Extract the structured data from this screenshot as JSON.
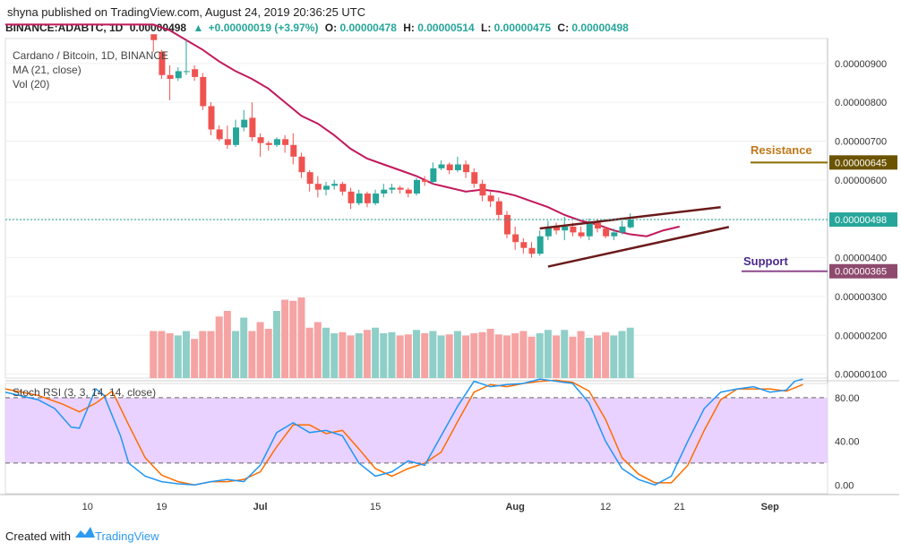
{
  "header": {
    "line1": "shyna published on TradingView.com, August 24, 2019 20:36:25 UTC",
    "symbol": "BINANCE:ADABTC, 1D",
    "last": "0.00000498",
    "change": "+0.00000019 (+3.97%)",
    "o_label": "O:",
    "o": "0.00000478",
    "h_label": "H:",
    "h": "0.00000514",
    "l_label": "L:",
    "l": "0.00000475",
    "c_label": "C:",
    "c": "0.00000498"
  },
  "legend": {
    "title": "Cardano / Bitcoin, 1D, BINANCE",
    "ma": "MA (21, close)",
    "vol": "Vol (20)"
  },
  "annotations": {
    "resistance": "Resistance",
    "support": "Support"
  },
  "footer": {
    "created_with": "Created with",
    "brand": "TradingView"
  },
  "colors": {
    "up": "#26a69a",
    "down": "#ef5350",
    "ma": "#c2185b",
    "vol_up": "#8fcfc8",
    "vol_down": "#f5a3a3",
    "trend": "#6b1a1a",
    "resistance": "#8a6d00",
    "support": "#8e4a8e",
    "rsi_k": "#2196f3",
    "rsi_d": "#ff6d00",
    "rsi_band": "#e4c7ff"
  },
  "chart_data": [
    {
      "type": "candlestick",
      "title": "Cardano / Bitcoin, 1D, BINANCE",
      "ylim": [
        9e-07,
        9.64e-06
      ],
      "y_ticks": [
        "0.00000100",
        "0.00000200",
        "0.00000300",
        "0.00000400",
        "0.00000500",
        "0.00000600",
        "0.00000700",
        "0.00000800",
        "0.00000900"
      ],
      "x_ticks": [
        {
          "label": "10",
          "day": 10
        },
        {
          "label": "19",
          "day": 19
        },
        {
          "label": "Jul",
          "day": 31
        },
        {
          "label": "15",
          "day": 45
        },
        {
          "label": "Aug",
          "day": 62
        },
        {
          "label": "12",
          "day": 73
        },
        {
          "label": "21",
          "day": 82
        },
        {
          "label": "Sep",
          "day": 93
        }
      ],
      "x_range": [
        0,
        100
      ],
      "start_day": 18,
      "candles": [
        [
          975,
          960,
          975,
          930
        ],
        [
          930,
          870,
          935,
          860
        ],
        [
          870,
          860,
          895,
          805
        ],
        [
          862,
          880,
          890,
          855
        ],
        [
          880,
          880,
          960,
          870
        ],
        [
          885,
          865,
          895,
          855
        ],
        [
          865,
          790,
          875,
          780
        ],
        [
          790,
          730,
          800,
          715
        ],
        [
          730,
          705,
          740,
          700
        ],
        [
          705,
          690,
          740,
          680
        ],
        [
          690,
          735,
          755,
          685
        ],
        [
          735,
          755,
          780,
          725
        ],
        [
          760,
          710,
          800,
          700
        ],
        [
          710,
          695,
          720,
          660
        ],
        [
          695,
          690,
          700,
          675
        ],
        [
          690,
          705,
          710,
          685
        ],
        [
          705,
          690,
          715,
          670
        ],
        [
          690,
          660,
          720,
          640
        ],
        [
          660,
          620,
          670,
          605
        ],
        [
          620,
          590,
          625,
          570
        ],
        [
          590,
          575,
          610,
          555
        ],
        [
          575,
          585,
          595,
          560
        ],
        [
          585,
          590,
          600,
          575
        ],
        [
          590,
          570,
          595,
          560
        ],
        [
          570,
          540,
          580,
          525
        ],
        [
          540,
          565,
          575,
          535
        ],
        [
          565,
          540,
          570,
          530
        ],
        [
          540,
          565,
          575,
          535
        ],
        [
          565,
          575,
          590,
          555
        ],
        [
          575,
          580,
          590,
          565
        ],
        [
          580,
          575,
          585,
          565
        ],
        [
          575,
          565,
          580,
          555
        ],
        [
          565,
          600,
          605,
          560
        ],
        [
          600,
          595,
          610,
          585
        ],
        [
          595,
          630,
          645,
          590
        ],
        [
          630,
          640,
          650,
          625
        ],
        [
          640,
          625,
          645,
          615
        ],
        [
          625,
          640,
          660,
          620
        ],
        [
          640,
          620,
          650,
          605
        ],
        [
          620,
          590,
          630,
          580
        ],
        [
          590,
          560,
          600,
          545
        ],
        [
          560,
          545,
          570,
          530
        ],
        [
          545,
          510,
          555,
          495
        ],
        [
          510,
          460,
          520,
          450
        ],
        [
          460,
          440,
          480,
          420
        ],
        [
          440,
          425,
          450,
          410
        ],
        [
          425,
          410,
          440,
          400
        ],
        [
          410,
          455,
          470,
          405
        ],
        [
          455,
          480,
          495,
          445
        ],
        [
          480,
          470,
          490,
          460
        ],
        [
          470,
          480,
          505,
          445
        ],
        [
          480,
          465,
          490,
          455
        ],
        [
          465,
          455,
          480,
          450
        ],
        [
          455,
          490,
          500,
          445
        ],
        [
          490,
          475,
          500,
          465
        ],
        [
          475,
          455,
          480,
          450
        ],
        [
          455,
          465,
          475,
          445
        ],
        [
          465,
          480,
          495,
          460
        ],
        [
          478,
          498,
          514,
          475
        ]
      ],
      "ma21": [
        [
          0,
          1000
        ],
        [
          18,
          1000
        ],
        [
          20,
          985
        ],
        [
          22,
          960
        ],
        [
          24,
          935
        ],
        [
          26,
          905
        ],
        [
          28,
          880
        ],
        [
          30,
          860
        ],
        [
          32,
          835
        ],
        [
          34,
          800
        ],
        [
          36,
          765
        ],
        [
          38,
          745
        ],
        [
          40,
          715
        ],
        [
          42,
          680
        ],
        [
          44,
          655
        ],
        [
          46,
          640
        ],
        [
          48,
          625
        ],
        [
          50,
          610
        ],
        [
          52,
          590
        ],
        [
          54,
          580
        ],
        [
          56,
          570
        ],
        [
          58,
          575
        ],
        [
          60,
          570
        ],
        [
          62,
          560
        ],
        [
          64,
          545
        ],
        [
          66,
          530
        ],
        [
          68,
          510
        ],
        [
          70,
          495
        ],
        [
          72,
          485
        ],
        [
          74,
          470
        ],
        [
          76,
          460
        ],
        [
          78,
          455
        ],
        [
          80,
          470
        ],
        [
          82,
          480
        ]
      ],
      "levels": [
        {
          "name": "Resistance",
          "value": 6.45e-06,
          "label": "0.00000645"
        },
        {
          "name": "Support",
          "value": 3.65e-06,
          "label": "0.00000365"
        },
        {
          "name": "Last",
          "value": 4.98e-06,
          "label": "0.00000498"
        }
      ],
      "trendlines": [
        {
          "from": [
            65,
            4.75e-06
          ],
          "to": [
            87,
            5.3e-06
          ]
        },
        {
          "from": [
            66,
            3.77e-06
          ],
          "to": [
            88,
            4.79e-06
          ]
        }
      ]
    },
    {
      "type": "bar",
      "title": "Vol (20)",
      "values": [
        42,
        42,
        40,
        38,
        42,
        35,
        42,
        42,
        55,
        60,
        42,
        54,
        42,
        50,
        44,
        60,
        70,
        69,
        72,
        45,
        50,
        45,
        40,
        41,
        38,
        40,
        43,
        45,
        40,
        41,
        38,
        39,
        43,
        40,
        42,
        38,
        39,
        42,
        38,
        40,
        41,
        44,
        39,
        38,
        40,
        42,
        37,
        40,
        43,
        38,
        43,
        37,
        42,
        36,
        38,
        41,
        38,
        42,
        45
      ]
    },
    {
      "type": "line",
      "title": "Stoch RSI (3, 3, 14, 14, close)",
      "ylim": [
        -8,
        93
      ],
      "y_ticks": [
        "0.00",
        "40.00",
        "80.00"
      ],
      "bands": [
        20,
        80
      ],
      "k": [
        [
          0,
          85
        ],
        [
          4,
          78
        ],
        [
          6,
          70
        ],
        [
          8,
          53
        ],
        [
          9,
          52
        ],
        [
          11,
          88
        ],
        [
          12,
          82
        ],
        [
          14,
          45
        ],
        [
          15,
          20
        ],
        [
          17,
          8
        ],
        [
          19,
          3
        ],
        [
          21,
          1
        ],
        [
          23,
          0
        ],
        [
          25,
          3
        ],
        [
          27,
          5
        ],
        [
          29,
          3
        ],
        [
          31,
          18
        ],
        [
          33,
          48
        ],
        [
          35,
          57
        ],
        [
          37,
          48
        ],
        [
          39,
          50
        ],
        [
          41,
          45
        ],
        [
          43,
          20
        ],
        [
          45,
          8
        ],
        [
          47,
          12
        ],
        [
          49,
          22
        ],
        [
          51,
          18
        ],
        [
          53,
          45
        ],
        [
          55,
          72
        ],
        [
          57,
          95
        ],
        [
          59,
          90
        ],
        [
          61,
          92
        ],
        [
          63,
          93
        ],
        [
          65,
          97
        ],
        [
          67,
          95
        ],
        [
          69,
          93
        ],
        [
          71,
          75
        ],
        [
          73,
          40
        ],
        [
          75,
          15
        ],
        [
          77,
          5
        ],
        [
          79,
          0
        ],
        [
          81,
          8
        ],
        [
          83,
          40
        ],
        [
          85,
          70
        ],
        [
          87,
          85
        ],
        [
          89,
          88
        ],
        [
          91,
          90
        ],
        [
          93,
          85
        ],
        [
          95,
          87
        ],
        [
          96,
          95
        ],
        [
          97,
          97
        ]
      ],
      "d": [
        [
          0,
          88
        ],
        [
          4,
          82
        ],
        [
          7,
          74
        ],
        [
          9,
          67
        ],
        [
          11,
          75
        ],
        [
          13,
          86
        ],
        [
          15,
          55
        ],
        [
          17,
          25
        ],
        [
          19,
          9
        ],
        [
          21,
          3
        ],
        [
          23,
          0
        ],
        [
          25,
          3
        ],
        [
          27,
          3
        ],
        [
          29,
          5
        ],
        [
          31,
          12
        ],
        [
          33,
          35
        ],
        [
          35,
          55
        ],
        [
          37,
          55
        ],
        [
          39,
          47
        ],
        [
          41,
          50
        ],
        [
          43,
          33
        ],
        [
          45,
          15
        ],
        [
          47,
          8
        ],
        [
          49,
          15
        ],
        [
          51,
          20
        ],
        [
          53,
          30
        ],
        [
          55,
          58
        ],
        [
          57,
          85
        ],
        [
          59,
          92
        ],
        [
          61,
          90
        ],
        [
          63,
          93
        ],
        [
          65,
          95
        ],
        [
          67,
          96
        ],
        [
          69,
          94
        ],
        [
          71,
          86
        ],
        [
          73,
          60
        ],
        [
          75,
          25
        ],
        [
          77,
          10
        ],
        [
          79,
          2
        ],
        [
          81,
          2
        ],
        [
          83,
          18
        ],
        [
          85,
          50
        ],
        [
          87,
          78
        ],
        [
          89,
          88
        ],
        [
          91,
          88
        ],
        [
          93,
          88
        ],
        [
          95,
          86
        ],
        [
          97,
          92
        ]
      ]
    }
  ]
}
